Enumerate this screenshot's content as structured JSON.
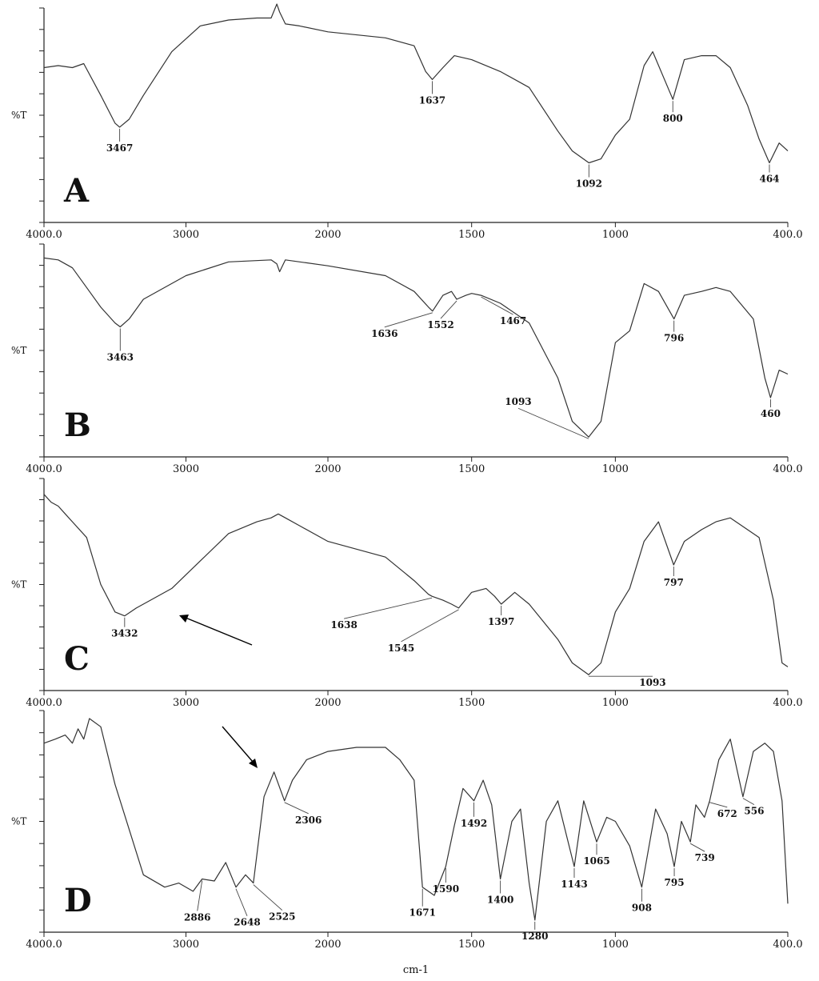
{
  "chart_data": [
    {
      "type": "line",
      "panel": "A",
      "ylabel": "%T",
      "xlim": [
        4000,
        400
      ],
      "xticks": [
        "4000.0",
        "3000",
        "2000",
        "1500",
        "1000",
        "400.0"
      ],
      "x": [
        4000,
        3900,
        3800,
        3720,
        3600,
        3500,
        3467,
        3400,
        3300,
        3100,
        2900,
        2700,
        2500,
        2400,
        2360,
        2340,
        2300,
        2200,
        2000,
        1800,
        1700,
        1660,
        1637,
        1600,
        1560,
        1500,
        1400,
        1300,
        1200,
        1150,
        1092,
        1050,
        1000,
        950,
        900,
        870,
        800,
        760,
        700,
        650,
        600,
        540,
        500,
        464,
        430,
        400
      ],
      "y": [
        74,
        75,
        74,
        76,
        60,
        46,
        44,
        48,
        60,
        82,
        95,
        98,
        99,
        99,
        106,
        102,
        96,
        95,
        92,
        89,
        85,
        72,
        68,
        74,
        80,
        78,
        72,
        64,
        42,
        32,
        26,
        28,
        40,
        48,
        75,
        82,
        58,
        78,
        80,
        80,
        74,
        55,
        38,
        26,
        36,
        32
      ],
      "peaks": [
        3467,
        1637,
        1092,
        800,
        464
      ]
    },
    {
      "type": "line",
      "panel": "B",
      "ylabel": "%T",
      "xlim": [
        4000,
        400
      ],
      "xticks": [
        "4000.0",
        "3000",
        "2000",
        "1500",
        "1000",
        "400.0"
      ],
      "x": [
        4000,
        3900,
        3800,
        3700,
        3600,
        3500,
        3463,
        3400,
        3300,
        3000,
        2700,
        2400,
        2360,
        2340,
        2300,
        2000,
        1800,
        1700,
        1650,
        1636,
        1600,
        1570,
        1552,
        1520,
        1500,
        1467,
        1400,
        1300,
        1200,
        1150,
        1093,
        1050,
        1000,
        950,
        900,
        850,
        796,
        760,
        700,
        650,
        600,
        520,
        480,
        460,
        430,
        400
      ],
      "y": [
        97,
        96,
        92,
        82,
        72,
        64,
        62,
        66,
        76,
        88,
        95,
        96,
        94,
        90,
        96,
        93,
        88,
        80,
        72,
        70,
        78,
        80,
        76,
        78,
        79,
        78,
        74,
        64,
        36,
        14,
        6,
        14,
        54,
        60,
        84,
        80,
        66,
        78,
        80,
        82,
        80,
        66,
        36,
        26,
        40,
        38
      ],
      "peaks": [
        3463,
        1636,
        1552,
        1467,
        1093,
        796,
        460
      ]
    },
    {
      "type": "line",
      "panel": "C",
      "ylabel": "%T",
      "xlim": [
        4000,
        400
      ],
      "xticks": [
        "4000.0",
        "3000",
        "2000",
        "1500",
        "1000",
        "400.0"
      ],
      "x": [
        4000,
        3950,
        3900,
        3850,
        3800,
        3700,
        3600,
        3500,
        3432,
        3350,
        3250,
        3100,
        2900,
        2700,
        2500,
        2400,
        2350,
        2300,
        2200,
        2000,
        1800,
        1700,
        1650,
        1638,
        1600,
        1570,
        1545,
        1500,
        1450,
        1420,
        1397,
        1350,
        1300,
        1200,
        1150,
        1093,
        1050,
        1000,
        950,
        900,
        850,
        797,
        760,
        700,
        650,
        600,
        500,
        450,
        420,
        400
      ],
      "y": [
        96,
        92,
        90,
        86,
        82,
        74,
        50,
        36,
        34,
        38,
        42,
        48,
        62,
        76,
        82,
        84,
        86,
        84,
        80,
        72,
        64,
        52,
        45,
        44,
        42,
        40,
        38,
        46,
        48,
        44,
        40,
        46,
        40,
        22,
        10,
        4,
        10,
        36,
        48,
        72,
        82,
        60,
        72,
        78,
        82,
        84,
        74,
        42,
        10,
        8
      ],
      "peaks": [
        3432,
        1638,
        1545,
        1397,
        1093,
        797
      ]
    },
    {
      "type": "line",
      "panel": "D",
      "ylabel": "%T",
      "xlabel": "cm-1",
      "xlim": [
        4000,
        400
      ],
      "xticks": [
        "4000.0",
        "3000",
        "2000",
        "1500",
        "1000",
        "400.0"
      ],
      "x": [
        4000,
        3920,
        3850,
        3800,
        3760,
        3720,
        3680,
        3600,
        3500,
        3300,
        3150,
        3050,
        2950,
        2886,
        2800,
        2720,
        2648,
        2580,
        2525,
        2450,
        2380,
        2306,
        2250,
        2150,
        2000,
        1900,
        1800,
        1750,
        1700,
        1671,
        1630,
        1590,
        1560,
        1530,
        1492,
        1460,
        1430,
        1400,
        1360,
        1330,
        1300,
        1280,
        1240,
        1200,
        1143,
        1110,
        1065,
        1030,
        1000,
        950,
        908,
        860,
        820,
        795,
        770,
        739,
        720,
        690,
        672,
        640,
        600,
        556,
        520,
        480,
        450,
        420,
        400
      ],
      "y": [
        88,
        90,
        92,
        88,
        95,
        90,
        100,
        96,
        68,
        24,
        18,
        20,
        16,
        22,
        21,
        30,
        18,
        24,
        20,
        62,
        74,
        60,
        70,
        80,
        84,
        86,
        86,
        80,
        70,
        18,
        14,
        28,
        48,
        66,
        60,
        70,
        58,
        22,
        50,
        56,
        20,
        2,
        50,
        60,
        28,
        60,
        40,
        52,
        50,
        38,
        18,
        56,
        44,
        28,
        50,
        40,
        58,
        52,
        60,
        80,
        90,
        62,
        84,
        88,
        84,
        60,
        10
      ],
      "peaks": [
        2886,
        2648,
        2525,
        2306,
        1671,
        1590,
        1492,
        1400,
        1280,
        1143,
        1065,
        908,
        795,
        739,
        672,
        556
      ]
    }
  ],
  "panels": {
    "A": {
      "letter": "A",
      "ylabel": "%T",
      "peak_labels": [
        "3467",
        "1637",
        "1092",
        "800",
        "464"
      ]
    },
    "B": {
      "letter": "B",
      "ylabel": "%T",
      "peak_labels": [
        "3463",
        "1636",
        "1552",
        "1467",
        "1093",
        "796",
        "460"
      ]
    },
    "C": {
      "letter": "C",
      "ylabel": "%T",
      "peak_labels": [
        "3432",
        "1638",
        "1545",
        "1397",
        "1093",
        "797"
      ]
    },
    "D": {
      "letter": "D",
      "ylabel": "%T",
      "peak_labels": [
        "2886",
        "2648",
        "2525",
        "2306",
        "1671",
        "1590",
        "1492",
        "1400",
        "1280",
        "1143",
        "1065",
        "908",
        "795",
        "739",
        "672",
        "556"
      ]
    }
  },
  "xaxis_title": "cm-1"
}
